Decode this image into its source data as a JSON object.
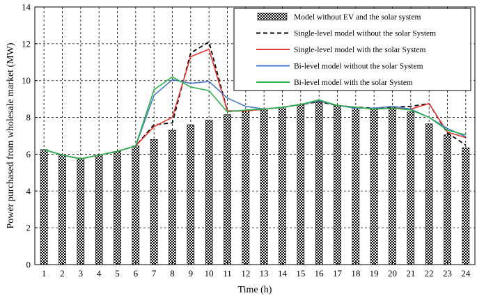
{
  "chart_data": {
    "type": "bar",
    "xlabel": "Time (h)",
    "ylabel": "Power purchased from wholesale market (MW)",
    "ylim": [
      0,
      14
    ],
    "yticks": [
      0,
      2,
      4,
      6,
      8,
      10,
      12,
      14
    ],
    "grid": true,
    "legend_position": "top-right",
    "categories": [
      "1",
      "2",
      "3",
      "4",
      "5",
      "6",
      "7",
      "8",
      "9",
      "10",
      "11",
      "12",
      "13",
      "14",
      "15",
      "16",
      "17",
      "18",
      "19",
      "20",
      "21",
      "22",
      "23",
      "24"
    ],
    "series": [
      {
        "name": "Model without EV and the solar system",
        "type": "bar",
        "style": "checkered",
        "color": "#000000",
        "values": [
          6.25,
          5.95,
          5.75,
          5.95,
          6.15,
          6.45,
          6.8,
          7.3,
          7.6,
          7.85,
          8.15,
          8.35,
          8.45,
          8.55,
          8.7,
          8.85,
          8.65,
          8.55,
          8.5,
          8.45,
          8.3,
          7.65,
          7.05,
          6.35
        ]
      },
      {
        "name": "Single-level model without the solar System",
        "type": "line",
        "dash": "6,4",
        "color": "#000000",
        "values": [
          6.25,
          5.95,
          5.75,
          5.95,
          6.15,
          6.45,
          7.6,
          7.7,
          11.5,
          12.1,
          8.35,
          8.35,
          8.45,
          8.55,
          8.7,
          8.85,
          8.65,
          8.55,
          8.5,
          8.55,
          8.6,
          8.75,
          7.15,
          6.5
        ]
      },
      {
        "name": "Single-level model with the solar System",
        "type": "line",
        "dash": "",
        "color": "#e3342f",
        "values": [
          6.25,
          5.95,
          5.75,
          5.95,
          6.15,
          6.45,
          7.5,
          8.0,
          11.3,
          11.7,
          8.35,
          8.35,
          8.45,
          8.55,
          8.7,
          8.9,
          8.65,
          8.55,
          8.45,
          8.5,
          8.45,
          8.75,
          7.2,
          6.9
        ]
      },
      {
        "name": "Bi-level model without the solar System",
        "type": "line",
        "dash": "",
        "color": "#4a78c8",
        "values": [
          6.25,
          5.95,
          5.75,
          5.95,
          6.15,
          6.45,
          9.2,
          10.05,
          9.85,
          9.95,
          9.05,
          8.6,
          8.45,
          8.55,
          8.7,
          8.9,
          8.65,
          8.5,
          8.5,
          8.6,
          8.45,
          8.0,
          7.4,
          6.95
        ]
      },
      {
        "name": "Bi-level model with the solar System",
        "type": "line",
        "dash": "",
        "color": "#2bb34a",
        "values": [
          6.25,
          5.95,
          5.75,
          5.95,
          6.15,
          6.45,
          9.5,
          10.2,
          9.65,
          9.45,
          8.3,
          8.4,
          8.45,
          8.55,
          8.7,
          8.95,
          8.65,
          8.55,
          8.45,
          8.5,
          8.4,
          8.0,
          7.3,
          7.05
        ]
      }
    ]
  }
}
